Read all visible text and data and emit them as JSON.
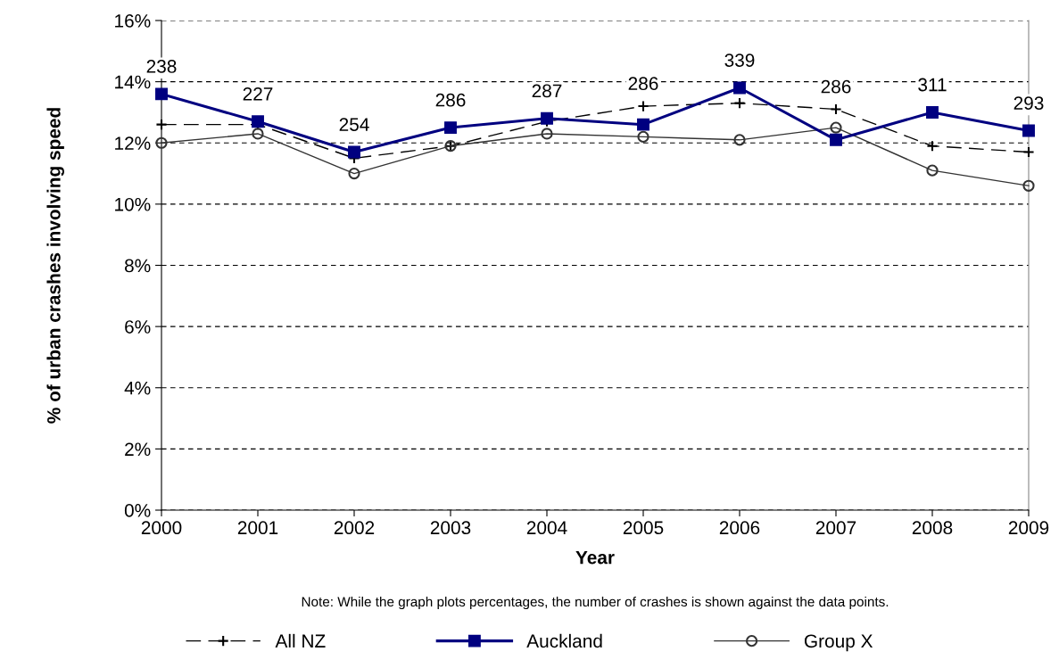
{
  "chart_data": {
    "type": "line",
    "xlabel": "Year",
    "ylabel": "% of urban crashes involving speed",
    "annotations": [
      "Note: While the graph plots percentages, the number of crashes is shown against the data points.",
      {
        "text": "238",
        "x": 2000,
        "y": 13.6
      },
      {
        "text": "227",
        "x": 2001,
        "y": 12.7
      },
      {
        "text": "254",
        "x": 2002,
        "y": 11.7
      },
      {
        "text": "286",
        "x": 2003,
        "y": 12.5
      },
      {
        "text": "287",
        "x": 2004,
        "y": 12.8
      },
      {
        "text": "286",
        "x": 2005,
        "y": 12.6
      },
      {
        "text": "339",
        "x": 2006,
        "y": 13.8
      },
      {
        "text": "286",
        "x": 2007,
        "y": 12.1
      },
      {
        "text": "311",
        "x": 2008,
        "y": 13.0
      },
      {
        "text": "293",
        "x": 2009,
        "y": 12.4
      }
    ],
    "x": [
      2000,
      2001,
      2002,
      2003,
      2004,
      2005,
      2006,
      2007,
      2008,
      2009
    ],
    "xlim": [
      2000,
      2009
    ],
    "xticks": [
      2000,
      2001,
      2002,
      2003,
      2004,
      2005,
      2006,
      2007,
      2008,
      2009
    ],
    "ylim": [
      0,
      16
    ],
    "yticks": [
      {
        "value": 0,
        "label": "0%"
      },
      {
        "value": 2,
        "label": "2%"
      },
      {
        "value": 4,
        "label": "4%"
      },
      {
        "value": 6,
        "label": "6%"
      },
      {
        "value": 8,
        "label": "8%"
      },
      {
        "value": 10,
        "label": "10%"
      },
      {
        "value": 12,
        "label": "12%"
      },
      {
        "value": 14,
        "label": "14%"
      },
      {
        "value": 16,
        "label": "16%"
      }
    ],
    "grid": "y",
    "legend": "bottom",
    "series": [
      {
        "name": "All NZ",
        "color": "#000000",
        "marker": "cross",
        "line_style": "dashed",
        "values": [
          12.6,
          12.6,
          11.5,
          11.9,
          12.7,
          13.2,
          13.3,
          13.1,
          11.9,
          11.7
        ]
      },
      {
        "name": "Auckland",
        "color": "#000080",
        "marker": "square",
        "line_style": "solid",
        "values": [
          13.6,
          12.7,
          11.7,
          12.5,
          12.8,
          12.6,
          13.8,
          12.1,
          13.0,
          12.4
        ]
      },
      {
        "name": "Group X",
        "color": "#333333",
        "marker": "circle",
        "line_style": "solid",
        "values": [
          12.0,
          12.3,
          11.0,
          11.9,
          12.3,
          12.2,
          12.1,
          12.5,
          11.1,
          10.6
        ]
      }
    ]
  }
}
